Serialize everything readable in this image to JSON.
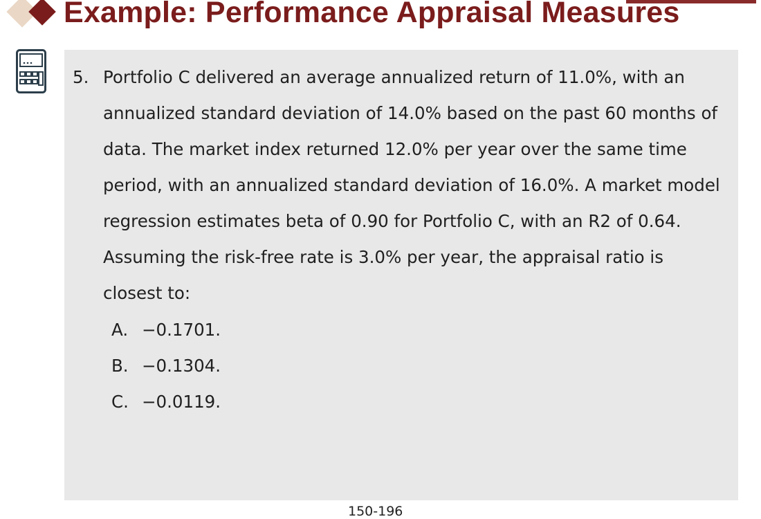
{
  "slide": {
    "title": "Example: Performance Appraisal Measures",
    "page_number": "150-196"
  },
  "question": {
    "number": "5.",
    "text": "Portfolio C delivered an average annualized return of 11.0%, with an annualized standard deviation of 14.0% based on the past 60 months of data. The market index returned 12.0% per year over the same time period, with an annualized standard deviation of 16.0%. A market model regression estimates beta of 0.90 for Portfolio C, with an R2 of 0.64. Assuming the risk-free rate is 3.0% per year, the appraisal ratio is closest to:",
    "options": [
      {
        "letter": "A.",
        "value": "−0.1701."
      },
      {
        "letter": "B.",
        "value": "−0.1304."
      },
      {
        "letter": "C.",
        "value": "−0.0119."
      }
    ]
  },
  "icons": {
    "header": [
      "diamond-bullet-icon",
      "diamond-bullet-icon"
    ],
    "side": "calculator-icon"
  },
  "colors": {
    "title": "#7b1c1c",
    "accent_light": "#ead7c5",
    "panel_bg": "#e8e8e8",
    "text": "#1f1f1f"
  }
}
